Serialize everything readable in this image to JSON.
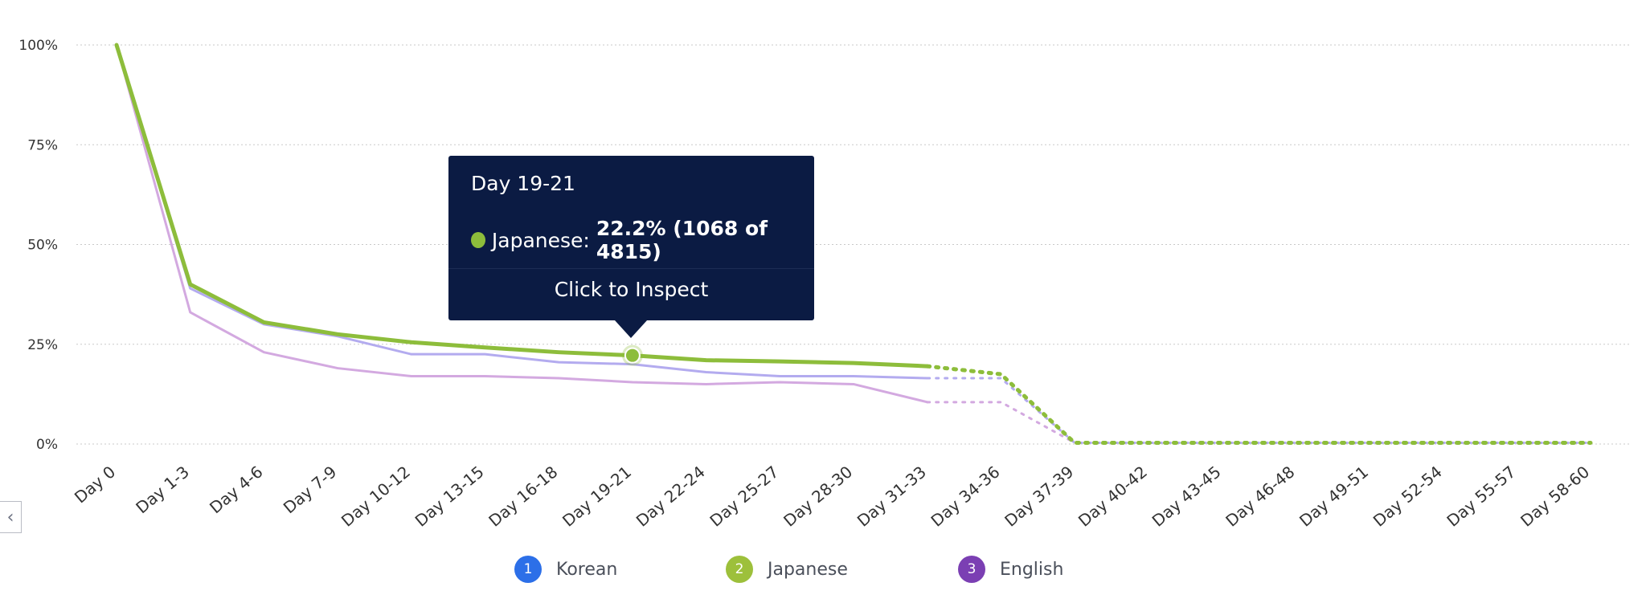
{
  "chart_data": {
    "type": "line",
    "categories": [
      "Day 0",
      "Day 1-3",
      "Day 4-6",
      "Day 7-9",
      "Day 10-12",
      "Day 13-15",
      "Day 16-18",
      "Day 19-21",
      "Day 22-24",
      "Day 25-27",
      "Day 28-30",
      "Day 31-33",
      "Day 34-36",
      "Day 37-39",
      "Day 40-42",
      "Day 43-45",
      "Day 46-48",
      "Day 49-51",
      "Day 52-54",
      "Day 55-57",
      "Day 58-60"
    ],
    "y_ticks": [
      "100%",
      "75%",
      "50%",
      "25%",
      "0%"
    ],
    "ylim": [
      0,
      100
    ],
    "grid": true,
    "legend_position": "bottom-center",
    "complete_until_index": 11,
    "series": [
      {
        "name": "Korean",
        "legend_number": "1",
        "color": "#b3abef",
        "values": [
          100,
          39,
          30,
          27,
          22.5,
          22.5,
          20.5,
          20,
          18,
          17,
          17,
          16.5,
          16.5,
          0.3,
          0.3,
          0.3,
          0.3,
          0.3,
          0.3,
          0.3,
          0.3
        ]
      },
      {
        "name": "Japanese",
        "legend_number": "2",
        "color": "#8dbd3b",
        "values": [
          100,
          40,
          30.5,
          27.5,
          25.5,
          24.2,
          23,
          22.2,
          21,
          20.7,
          20.3,
          19.5,
          17.5,
          0.3,
          0.3,
          0.3,
          0.3,
          0.3,
          0.3,
          0.3,
          0.3
        ]
      },
      {
        "name": "English",
        "legend_number": "3",
        "color": "#d3a9e0",
        "values": [
          100,
          33,
          23,
          19,
          17,
          17,
          16.5,
          15.5,
          15,
          15.5,
          15,
          10.5,
          10.5,
          0.3,
          0.3,
          0.3,
          0.3,
          0.3,
          0.3,
          0.3,
          0.3
        ]
      }
    ],
    "legend_badge_colors": [
      "#2c6fe8",
      "#9dc03b",
      "#7b3fb3"
    ],
    "highlight": {
      "series_index": 1,
      "category_index": 7
    }
  },
  "tooltip": {
    "title": "Day 19-21",
    "series_label": "Japanese:",
    "value_text": "22.2% (1068 of 4815)",
    "action": "Click to Inspect"
  },
  "scroll_icon": "chevron-left-icon"
}
